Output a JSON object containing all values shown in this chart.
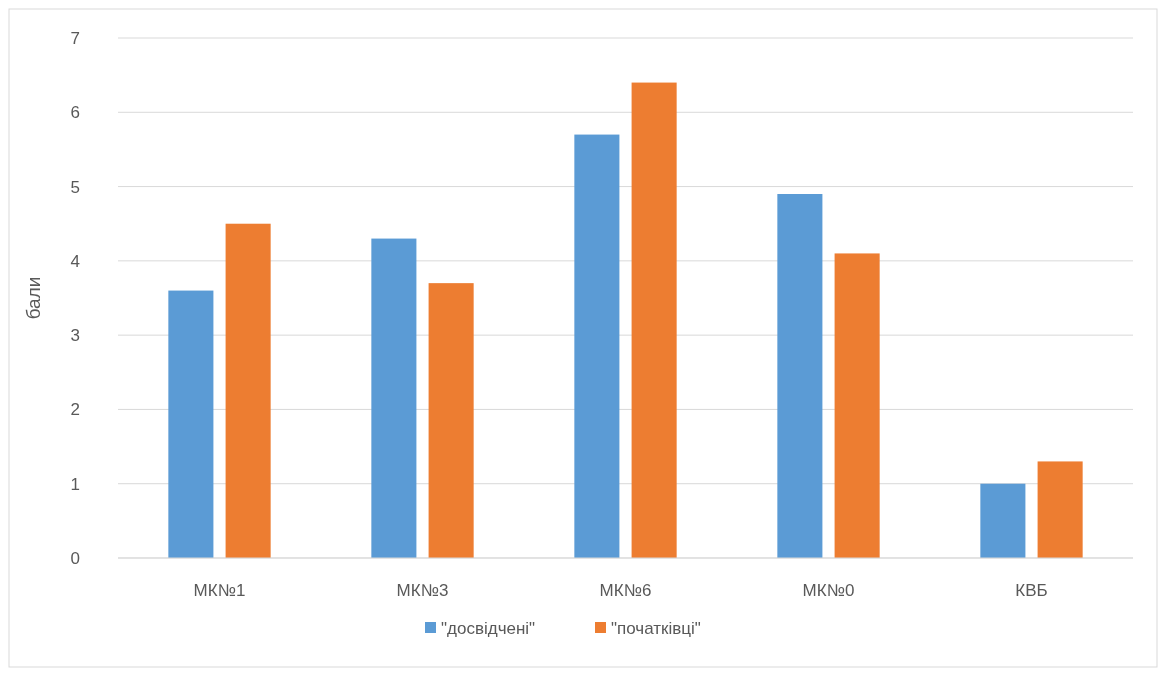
{
  "chart_data": {
    "type": "bar",
    "ylabel": "бали",
    "categories": [
      "МК№1",
      "МК№3",
      "МК№6",
      "МК№0",
      "КВБ"
    ],
    "series": [
      {
        "name": "\"досвідчені\"",
        "color": "#5b9bd5",
        "values": [
          3.6,
          4.3,
          5.7,
          4.9,
          1.0
        ]
      },
      {
        "name": "\"початківці\"",
        "color": "#ed7d31",
        "values": [
          4.5,
          3.7,
          6.4,
          4.1,
          1.3
        ]
      }
    ],
    "ylim": [
      0,
      7
    ],
    "yticks": [
      0,
      1,
      2,
      3,
      4,
      5,
      6,
      7
    ],
    "grid": "y",
    "legend": "bottom"
  }
}
